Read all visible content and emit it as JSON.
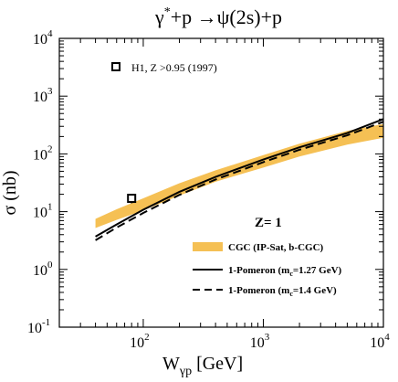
{
  "chart_data": {
    "type": "line",
    "title": {
      "gamma": "γ",
      "star": "*",
      "rest": "+p →ψ(2s)+p"
    },
    "xlabel": {
      "main": "W",
      "sub": "γp",
      "rest": " [GeV]"
    },
    "ylabel": "σ (nb)",
    "x_scale": "log",
    "y_scale": "log",
    "xlim": [
      20,
      10000
    ],
    "ylim": [
      0.1,
      10000
    ],
    "x_ticks": [
      {
        "value": 100,
        "base": "10",
        "exp": "2"
      },
      {
        "value": 1000,
        "base": "10",
        "exp": "3"
      },
      {
        "value": 10000,
        "base": "10",
        "exp": "4"
      }
    ],
    "y_ticks": [
      {
        "value": 0.1,
        "base": "10",
        "exp": "-1"
      },
      {
        "value": 1,
        "base": "10",
        "exp": "0"
      },
      {
        "value": 10,
        "base": "10",
        "exp": "1"
      },
      {
        "value": 100,
        "base": "10",
        "exp": "2"
      },
      {
        "value": 1000,
        "base": "10",
        "exp": "3"
      },
      {
        "value": 10000,
        "base": "10",
        "exp": "4"
      }
    ],
    "annotation": "Z= 1",
    "data_points": {
      "name": "H1, Z >0.95  (1997)",
      "points": [
        {
          "x": 80,
          "y": 17,
          "yerr": 3
        }
      ]
    },
    "band": {
      "name": "CGC (IP-Sat, b-CGC)",
      "color": "#f5c054",
      "x": [
        40,
        60,
        100,
        200,
        400,
        1000,
        2000,
        5000,
        10000
      ],
      "upper": [
        7.5,
        11,
        17,
        31,
        52,
        95,
        150,
        250,
        330
      ],
      "lower": [
        5.2,
        7.2,
        10.5,
        19,
        33,
        58,
        90,
        145,
        190
      ]
    },
    "series": [
      {
        "name": "1-Pomeron (m",
        "name_sub": "c",
        "name_rest": "=1.27 GeV)",
        "style": "solid",
        "x": [
          40,
          60,
          100,
          200,
          400,
          1000,
          2000,
          5000,
          10000
        ],
        "values": [
          3.7,
          6.0,
          10.8,
          22,
          40,
          80,
          130,
          230,
          400
        ]
      },
      {
        "name": "1-Pomeron (m",
        "name_sub": "c",
        "name_rest": "=1.4 GeV)",
        "style": "dashed",
        "x": [
          40,
          60,
          100,
          200,
          400,
          1000,
          2000,
          5000,
          10000
        ],
        "values": [
          3.2,
          5.3,
          9.5,
          19.5,
          36,
          72,
          118,
          210,
          360
        ]
      }
    ],
    "legend_position": "lower-right"
  }
}
